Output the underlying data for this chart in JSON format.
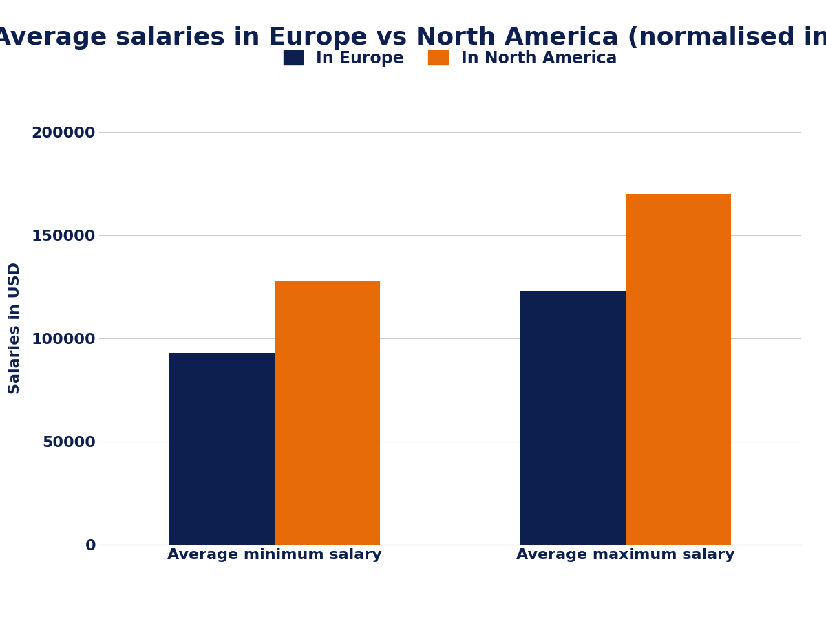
{
  "title": "Average salaries in Europe vs North America (normalised in USD)",
  "categories": [
    "Average minimum salary",
    "Average maximum salary"
  ],
  "europe_values": [
    93000,
    123000
  ],
  "na_values": [
    128000,
    170000
  ],
  "europe_color": "#0d1f4e",
  "na_color": "#e86b0a",
  "ylabel": "Salaries in USD",
  "legend_europe": "In Europe",
  "legend_na": "In North America",
  "ylim": [
    0,
    210000
  ],
  "yticks": [
    0,
    50000,
    100000,
    150000,
    200000
  ],
  "background_color": "#ffffff",
  "text_color": "#0d1f4e",
  "title_fontsize": 26,
  "axis_label_fontsize": 16,
  "tick_fontsize": 16,
  "legend_fontsize": 17,
  "bar_width": 0.3
}
